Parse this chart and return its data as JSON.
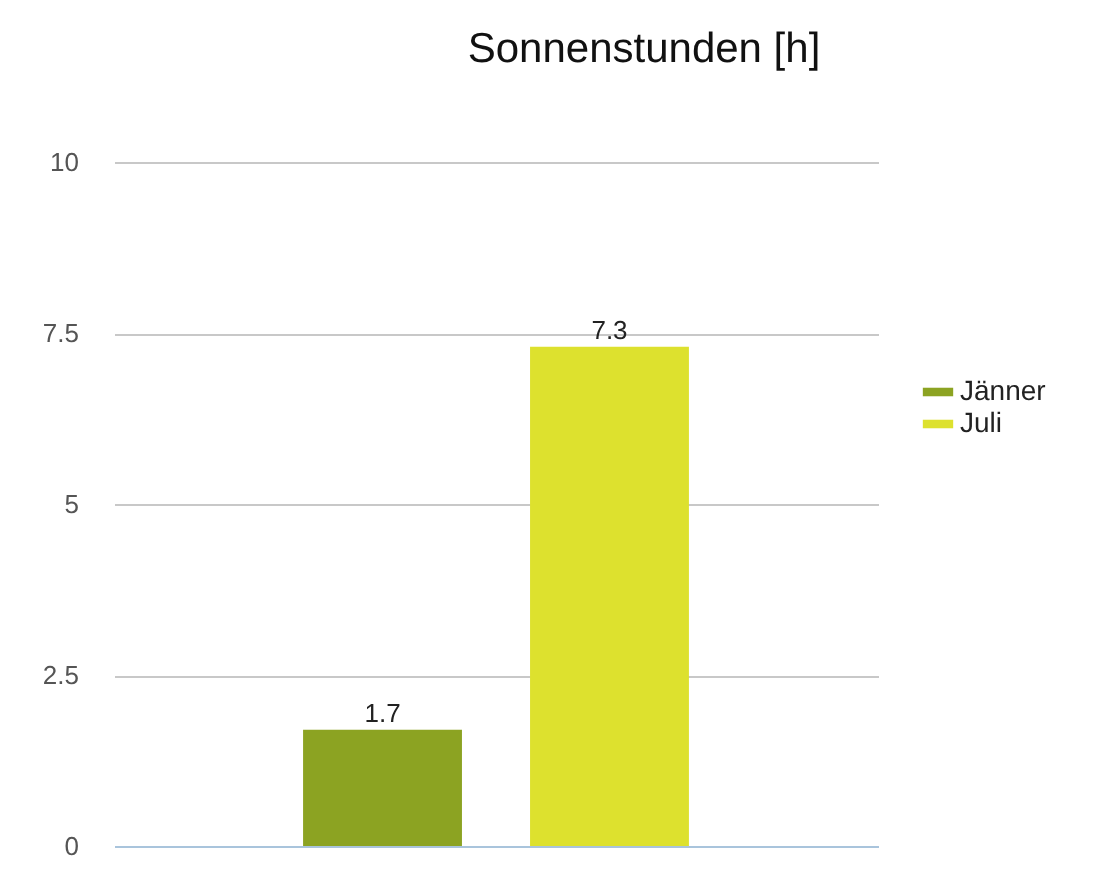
{
  "chart_data": {
    "type": "bar",
    "title": "Sonnenstunden [h]",
    "categories": [
      null
    ],
    "series": [
      {
        "name": "Jänner",
        "color": "#8ca322",
        "values": [
          1.7
        ]
      },
      {
        "name": "Juli",
        "color": "#dde12e",
        "values": [
          7.3
        ]
      }
    ],
    "ylim": [
      0,
      10
    ],
    "yticks": [
      0,
      2.5,
      5,
      7.5,
      10
    ],
    "grid": "y",
    "legend": "right",
    "data_labels": true
  }
}
